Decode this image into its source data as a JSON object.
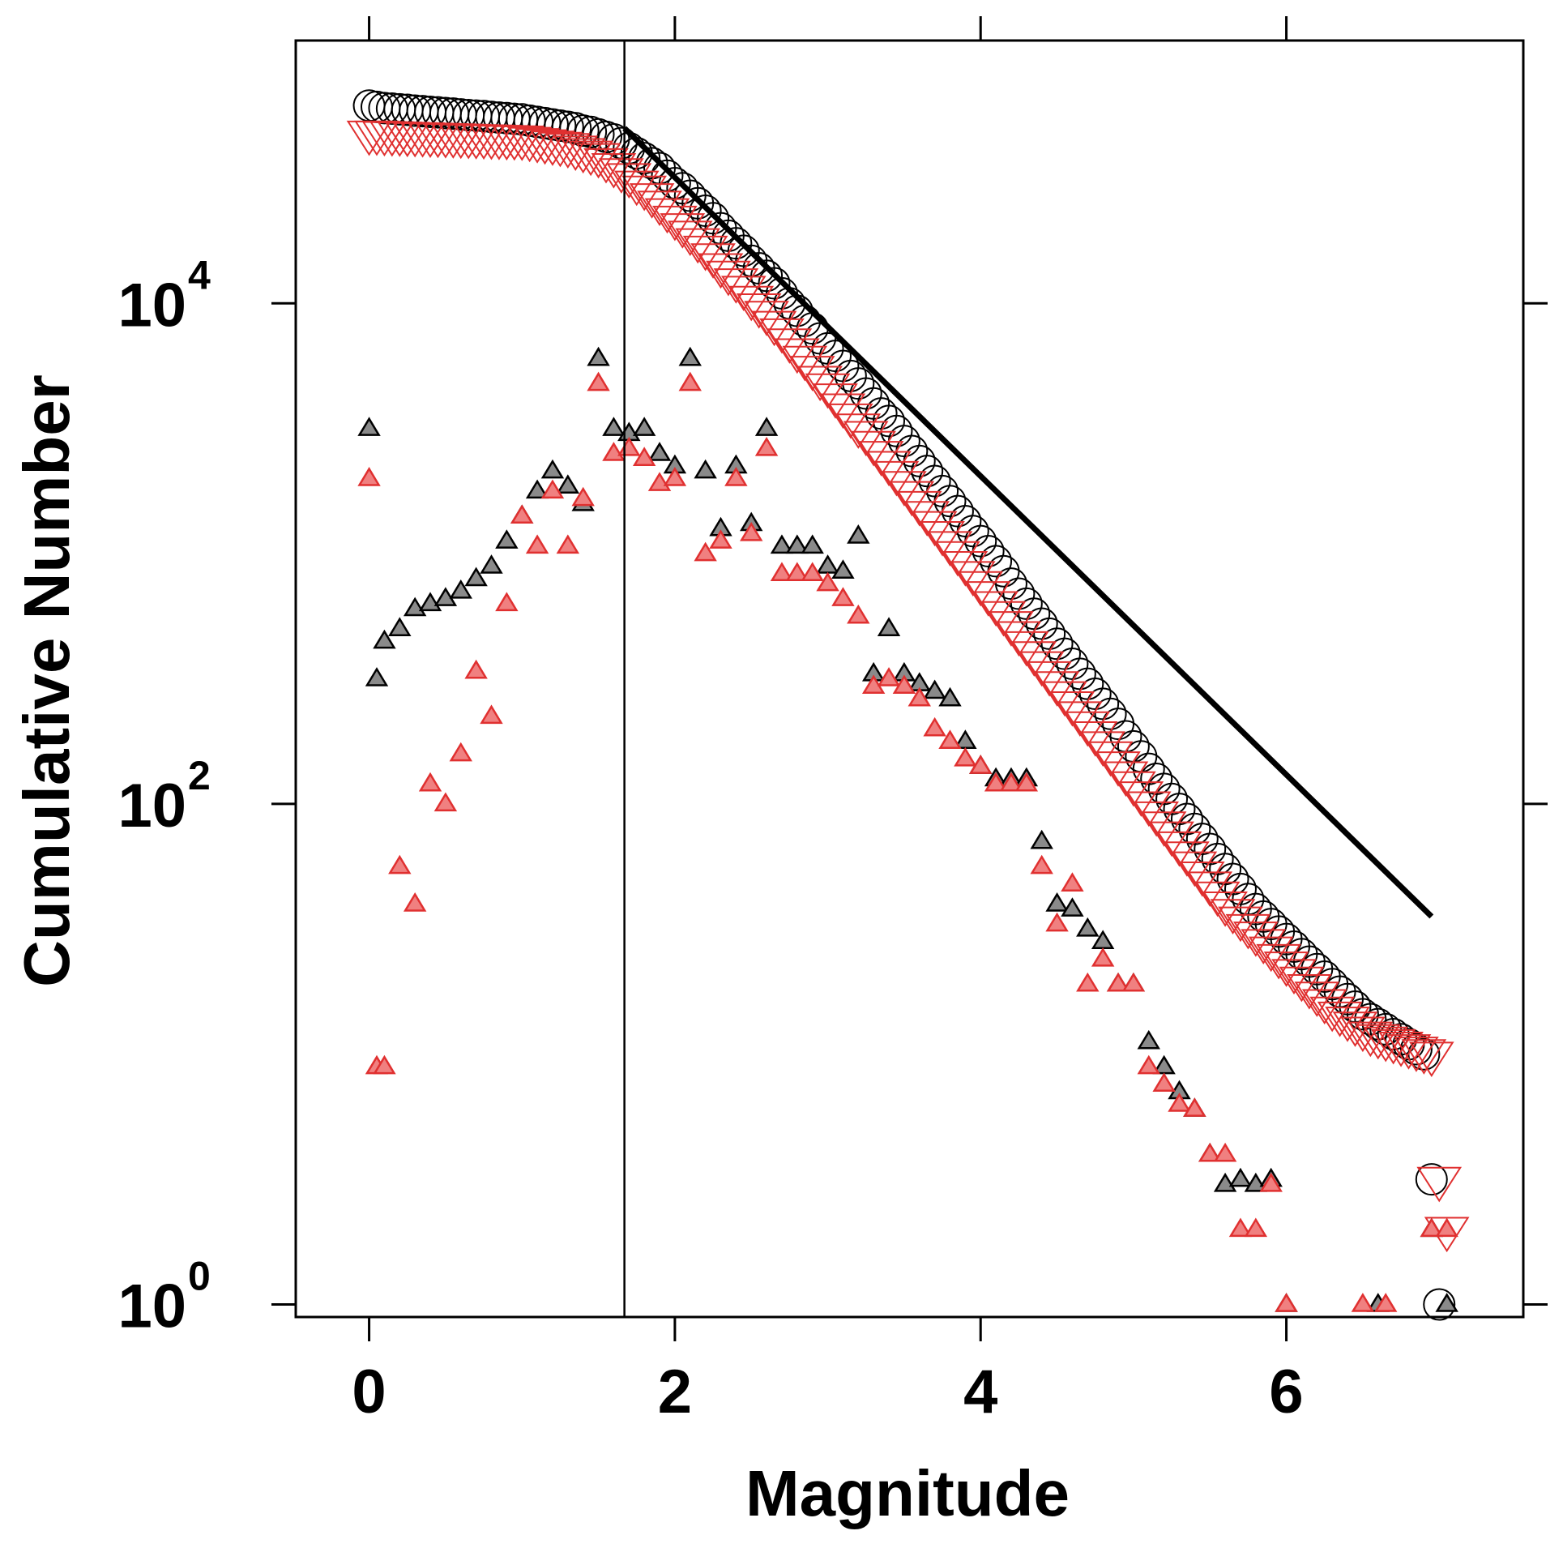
{
  "chart_data": {
    "type": "scatter",
    "title": "",
    "xlabel": "Magnitude",
    "ylabel": "Cumulative Number",
    "x_scale": "linear",
    "y_scale": "log10",
    "xlim": [
      -0.48,
      7.55
    ],
    "ylim_log10": [
      -0.05,
      5.05
    ],
    "x_ticks": [
      {
        "value": 0,
        "label": "0"
      },
      {
        "value": 2,
        "label": "2"
      },
      {
        "value": 4,
        "label": "4"
      },
      {
        "value": 6,
        "label": "6"
      }
    ],
    "y_ticks": [
      {
        "value": 0,
        "base": "10",
        "exp": "0"
      },
      {
        "value": 2,
        "base": "10",
        "exp": "2"
      },
      {
        "value": 4,
        "base": "10",
        "exp": "4"
      }
    ],
    "colors": {
      "black": "#000000",
      "red": "#e03030",
      "tri_black_fill": "#8a8a8a",
      "tri_red_fill": "#f08080"
    },
    "magnitude_of_completeness": 1.67,
    "fit_line": {
      "x": [
        1.67,
        6.95
      ],
      "log10_y": [
        4.7,
        1.55
      ]
    },
    "series": [
      {
        "name": "cumulative (black circles)",
        "marker": "circle-open",
        "color": "#000000",
        "x": [
          0,
          0.05,
          0.1,
          0.15,
          0.2,
          0.25,
          0.3,
          0.35,
          0.4,
          0.45,
          0.5,
          0.55,
          0.6,
          0.65,
          0.7,
          0.75,
          0.8,
          0.85,
          0.9,
          0.95,
          1.0,
          1.05,
          1.1,
          1.15,
          1.2,
          1.25,
          1.3,
          1.35,
          1.4,
          1.45,
          1.5,
          1.55,
          1.6,
          1.65,
          1.7,
          1.75,
          1.8,
          1.85,
          1.9,
          1.95,
          2.0,
          2.05,
          2.1,
          2.15,
          2.2,
          2.25,
          2.3,
          2.35,
          2.4,
          2.45,
          2.5,
          2.55,
          2.6,
          2.65,
          2.7,
          2.75,
          2.8,
          2.85,
          2.9,
          2.95,
          3.0,
          3.05,
          3.1,
          3.15,
          3.2,
          3.25,
          3.3,
          3.35,
          3.4,
          3.45,
          3.5,
          3.55,
          3.6,
          3.65,
          3.7,
          3.75,
          3.8,
          3.85,
          3.9,
          3.95,
          4.0,
          4.05,
          4.1,
          4.15,
          4.2,
          4.25,
          4.3,
          4.35,
          4.4,
          4.45,
          4.5,
          4.55,
          4.6,
          4.65,
          4.7,
          4.75,
          4.8,
          4.85,
          4.9,
          4.95,
          5.0,
          5.05,
          5.1,
          5.15,
          5.2,
          5.25,
          5.3,
          5.35,
          5.4,
          5.45,
          5.5,
          5.55,
          5.6,
          5.65,
          5.7,
          5.75,
          5.8,
          5.85,
          5.9,
          5.95,
          6.0,
          6.05,
          6.1,
          6.15,
          6.2,
          6.25,
          6.3,
          6.35,
          6.4,
          6.45,
          6.5,
          6.55,
          6.6,
          6.65,
          6.7,
          6.75,
          6.8,
          6.85,
          6.9,
          6.95,
          7.0
        ],
        "log10_y": [
          4.79,
          4.785,
          4.78,
          4.778,
          4.775,
          4.773,
          4.77,
          4.768,
          4.765,
          4.763,
          4.76,
          4.758,
          4.755,
          4.752,
          4.75,
          4.748,
          4.745,
          4.742,
          4.74,
          4.737,
          4.735,
          4.73,
          4.725,
          4.72,
          4.715,
          4.71,
          4.705,
          4.7,
          4.69,
          4.685,
          4.675,
          4.665,
          4.655,
          4.64,
          4.62,
          4.6,
          4.58,
          4.56,
          4.54,
          4.51,
          4.48,
          4.46,
          4.43,
          4.4,
          4.37,
          4.34,
          4.3,
          4.27,
          4.24,
          4.21,
          4.17,
          4.14,
          4.11,
          4.08,
          4.04,
          4.0,
          3.97,
          3.93,
          3.9,
          3.86,
          3.82,
          3.79,
          3.75,
          3.71,
          3.68,
          3.64,
          3.6,
          3.56,
          3.53,
          3.49,
          3.45,
          3.41,
          3.37,
          3.33,
          3.29,
          3.25,
          3.21,
          3.17,
          3.13,
          3.09,
          3.05,
          3.01,
          2.97,
          2.93,
          2.88,
          2.84,
          2.8,
          2.76,
          2.72,
          2.68,
          2.64,
          2.6,
          2.56,
          2.52,
          2.48,
          2.44,
          2.4,
          2.36,
          2.32,
          2.27,
          2.23,
          2.19,
          2.14,
          2.1,
          2.06,
          2.02,
          1.98,
          1.94,
          1.9,
          1.86,
          1.82,
          1.78,
          1.74,
          1.7,
          1.66,
          1.62,
          1.58,
          1.55,
          1.52,
          1.49,
          1.46,
          1.43,
          1.4,
          1.37,
          1.34,
          1.31,
          1.28,
          1.25,
          1.22,
          1.19,
          1.16,
          1.14,
          1.12,
          1.1,
          1.08,
          1.06,
          1.04,
          1.02,
          1.0,
          0.5,
          0.0
        ]
      },
      {
        "name": "cumulative (red inverted triangles)",
        "marker": "triangle-down-open",
        "color": "#e03030",
        "x": [
          0,
          0.05,
          0.1,
          0.15,
          0.2,
          0.25,
          0.3,
          0.35,
          0.4,
          0.45,
          0.5,
          0.55,
          0.6,
          0.65,
          0.7,
          0.75,
          0.8,
          0.85,
          0.9,
          0.95,
          1.0,
          1.05,
          1.1,
          1.15,
          1.2,
          1.25,
          1.3,
          1.35,
          1.4,
          1.45,
          1.5,
          1.55,
          1.6,
          1.65,
          1.7,
          1.75,
          1.8,
          1.85,
          1.9,
          1.95,
          2.0,
          2.05,
          2.1,
          2.15,
          2.2,
          2.25,
          2.3,
          2.35,
          2.4,
          2.45,
          2.5,
          2.55,
          2.6,
          2.65,
          2.7,
          2.75,
          2.8,
          2.85,
          2.9,
          2.95,
          3.0,
          3.05,
          3.1,
          3.15,
          3.2,
          3.25,
          3.3,
          3.35,
          3.4,
          3.45,
          3.5,
          3.55,
          3.6,
          3.65,
          3.7,
          3.75,
          3.8,
          3.85,
          3.9,
          3.95,
          4.0,
          4.05,
          4.1,
          4.15,
          4.2,
          4.25,
          4.3,
          4.35,
          4.4,
          4.45,
          4.5,
          4.55,
          4.6,
          4.65,
          4.7,
          4.75,
          4.8,
          4.85,
          4.9,
          4.95,
          5.0,
          5.05,
          5.1,
          5.15,
          5.2,
          5.25,
          5.3,
          5.35,
          5.4,
          5.45,
          5.5,
          5.55,
          5.6,
          5.65,
          5.7,
          5.75,
          5.8,
          5.85,
          5.9,
          5.95,
          6.0,
          6.05,
          6.1,
          6.15,
          6.2,
          6.25,
          6.3,
          6.35,
          6.4,
          6.45,
          6.5,
          6.55,
          6.6,
          6.65,
          6.7,
          6.75,
          6.8,
          6.85,
          6.9,
          6.95,
          7.0,
          7.05
        ],
        "log10_y": [
          4.68,
          4.68,
          4.678,
          4.677,
          4.676,
          4.675,
          4.674,
          4.673,
          4.672,
          4.671,
          4.67,
          4.669,
          4.668,
          4.667,
          4.666,
          4.665,
          4.664,
          4.663,
          4.662,
          4.661,
          4.66,
          4.655,
          4.65,
          4.645,
          4.64,
          4.635,
          4.63,
          4.62,
          4.61,
          4.6,
          4.59,
          4.57,
          4.55,
          4.53,
          4.51,
          4.48,
          4.46,
          4.43,
          4.4,
          4.37,
          4.34,
          4.31,
          4.28,
          4.25,
          4.22,
          4.19,
          4.15,
          4.12,
          4.09,
          4.06,
          4.02,
          3.99,
          3.96,
          3.92,
          3.89,
          3.85,
          3.81,
          3.78,
          3.74,
          3.7,
          3.67,
          3.63,
          3.59,
          3.55,
          3.51,
          3.48,
          3.44,
          3.4,
          3.36,
          3.32,
          3.28,
          3.24,
          3.2,
          3.16,
          3.12,
          3.08,
          3.04,
          3.0,
          2.96,
          2.92,
          2.88,
          2.84,
          2.8,
          2.76,
          2.72,
          2.68,
          2.64,
          2.6,
          2.56,
          2.52,
          2.48,
          2.44,
          2.4,
          2.36,
          2.32,
          2.28,
          2.24,
          2.2,
          2.16,
          2.12,
          2.08,
          2.04,
          2.0,
          1.96,
          1.92,
          1.88,
          1.84,
          1.8,
          1.76,
          1.72,
          1.68,
          1.64,
          1.6,
          1.57,
          1.54,
          1.51,
          1.48,
          1.45,
          1.42,
          1.39,
          1.36,
          1.33,
          1.3,
          1.27,
          1.24,
          1.21,
          1.18,
          1.16,
          1.14,
          1.12,
          1.1,
          1.08,
          1.07,
          1.06,
          1.05,
          1.04,
          1.03,
          1.02,
          1.01,
          1.0,
          0.5,
          0.3
        ]
      },
      {
        "name": "non-cumulative (black triangles)",
        "marker": "triangle-up-filled",
        "color": "#000000",
        "x": [
          0.0,
          0.05,
          0.1,
          0.2,
          0.3,
          0.4,
          0.5,
          0.6,
          0.7,
          0.8,
          0.9,
          1.0,
          1.1,
          1.2,
          1.3,
          1.4,
          1.5,
          1.6,
          1.7,
          1.8,
          1.9,
          2.0,
          2.1,
          2.2,
          2.3,
          2.4,
          2.5,
          2.6,
          2.7,
          2.8,
          2.9,
          3.0,
          3.1,
          3.2,
          3.3,
          3.4,
          3.5,
          3.6,
          3.7,
          3.8,
          3.9,
          4.0,
          4.1,
          4.2,
          4.3,
          4.4,
          4.5,
          4.6,
          4.7,
          4.8,
          4.9,
          5.0,
          5.1,
          5.2,
          5.3,
          5.4,
          5.5,
          5.6,
          5.7,
          5.8,
          5.9,
          6.0,
          6.6,
          6.95,
          7.05
        ],
        "log10_y": [
          3.5,
          2.5,
          2.65,
          2.7,
          2.78,
          2.8,
          2.82,
          2.85,
          2.9,
          2.95,
          3.05,
          3.15,
          3.25,
          3.33,
          3.27,
          3.2,
          3.78,
          3.5,
          3.48,
          3.5,
          3.4,
          3.35,
          3.78,
          3.33,
          3.1,
          3.35,
          3.12,
          3.5,
          3.03,
          3.03,
          3.03,
          2.95,
          2.93,
          3.07,
          2.52,
          2.7,
          2.52,
          2.48,
          2.45,
          2.42,
          2.25,
          2.15,
          2.1,
          2.1,
          2.1,
          1.85,
          1.6,
          1.58,
          1.5,
          1.45,
          1.28,
          1.28,
          1.05,
          0.95,
          0.85,
          0.78,
          0.6,
          0.48,
          0.5,
          0.48,
          0.5,
          0.0,
          0.0,
          0.3,
          0.0
        ]
      },
      {
        "name": "non-cumulative (red triangles)",
        "marker": "triangle-up-filled",
        "color": "#e03030",
        "x": [
          0.0,
          0.05,
          0.1,
          0.2,
          0.3,
          0.4,
          0.5,
          0.6,
          0.7,
          0.8,
          0.9,
          1.0,
          1.1,
          1.2,
          1.3,
          1.4,
          1.5,
          1.6,
          1.7,
          1.8,
          1.9,
          2.0,
          2.1,
          2.2,
          2.3,
          2.4,
          2.5,
          2.6,
          2.7,
          2.8,
          2.9,
          3.0,
          3.1,
          3.2,
          3.3,
          3.4,
          3.5,
          3.6,
          3.7,
          3.8,
          3.9,
          4.0,
          4.1,
          4.2,
          4.3,
          4.4,
          4.5,
          4.6,
          4.7,
          4.8,
          4.9,
          5.0,
          5.1,
          5.2,
          5.3,
          5.4,
          5.5,
          5.6,
          5.7,
          5.8,
          5.9,
          6.0,
          6.5,
          6.65,
          6.95,
          7.05
        ],
        "log10_y": [
          3.3,
          0.95,
          0.95,
          1.75,
          1.6,
          2.08,
          2.0,
          2.2,
          2.53,
          2.35,
          2.8,
          3.15,
          3.03,
          3.25,
          3.03,
          3.22,
          3.68,
          3.4,
          3.42,
          3.38,
          3.28,
          3.3,
          3.68,
          3.0,
          3.05,
          3.3,
          3.08,
          3.42,
          2.92,
          2.92,
          2.92,
          2.88,
          2.82,
          2.75,
          2.47,
          2.5,
          2.47,
          2.42,
          2.3,
          2.25,
          2.18,
          2.15,
          2.08,
          2.08,
          2.08,
          1.75,
          1.52,
          1.68,
          1.28,
          1.38,
          1.28,
          1.28,
          0.95,
          0.88,
          0.8,
          0.78,
          0.6,
          0.6,
          0.3,
          0.3,
          0.48,
          0.0,
          0.0,
          0.0,
          0.3,
          0.3
        ]
      }
    ]
  }
}
